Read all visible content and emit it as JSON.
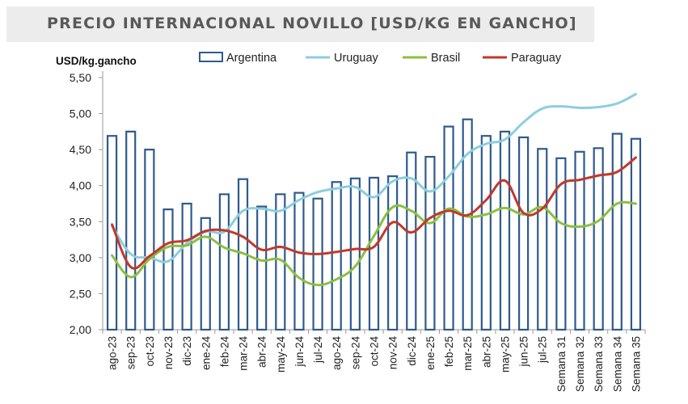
{
  "chart_data": {
    "type": "bar+line",
    "title": "PRECIO INTERNACIONAL NOVILLO [USD/KG EN GANCHO]",
    "ylabel": "USD/kg.gancho",
    "ylim": [
      2.0,
      5.5
    ],
    "yticks": [
      "2,00",
      "2,50",
      "3,00",
      "3,50",
      "4,00",
      "4,50",
      "5,00",
      "5,50"
    ],
    "legend_position": "top",
    "grid": false,
    "categories": [
      "ago-23",
      "sep-23",
      "oct-23",
      "nov-23",
      "dic-23",
      "ene-24",
      "feb-24",
      "mar-24",
      "abr-24",
      "may-24",
      "jun-24",
      "jul-24",
      "ago-24",
      "sep-24",
      "oct-24",
      "nov-24",
      "dic-24",
      "ene-25",
      "feb-25",
      "mar-25",
      "abr-25",
      "may-25",
      "jun-25",
      "jul-25",
      "Semana 31",
      "Semana 32",
      "Semana 33",
      "Semana 34",
      "Semana 35"
    ],
    "series": [
      {
        "name": "Argentina",
        "kind": "bar",
        "color": "#2e5a8c",
        "values": [
          4.69,
          4.75,
          4.5,
          3.67,
          3.75,
          3.55,
          3.88,
          4.09,
          3.71,
          3.88,
          3.9,
          3.82,
          4.05,
          4.1,
          4.11,
          4.13,
          4.46,
          4.4,
          4.82,
          4.92,
          4.69,
          4.75,
          4.67,
          4.51,
          4.38,
          4.47,
          4.52,
          4.72,
          4.65
        ]
      },
      {
        "name": "Uruguay",
        "kind": "line",
        "color": "#8ccde0",
        "values": [
          3.44,
          3.05,
          3.0,
          2.95,
          3.2,
          3.36,
          3.36,
          3.65,
          3.68,
          3.65,
          3.8,
          3.91,
          3.96,
          3.98,
          3.84,
          4.06,
          4.1,
          3.92,
          4.13,
          4.44,
          4.58,
          4.64,
          4.88,
          5.07,
          5.1,
          5.08,
          5.09,
          5.14,
          5.27
        ]
      },
      {
        "name": "Brasil",
        "kind": "line",
        "color": "#8cbf40",
        "values": [
          3.03,
          2.73,
          2.98,
          3.15,
          3.17,
          3.29,
          3.14,
          3.06,
          2.96,
          2.97,
          2.72,
          2.62,
          2.7,
          2.88,
          3.3,
          3.7,
          3.65,
          3.48,
          3.68,
          3.57,
          3.6,
          3.69,
          3.6,
          3.7,
          3.48,
          3.43,
          3.51,
          3.75,
          3.75
        ]
      },
      {
        "name": "Paraguay",
        "kind": "line",
        "color": "#c0392b",
        "values": [
          3.46,
          2.87,
          3.02,
          3.2,
          3.24,
          3.37,
          3.38,
          3.29,
          3.11,
          3.15,
          3.07,
          3.05,
          3.08,
          3.12,
          3.15,
          3.49,
          3.35,
          3.55,
          3.65,
          3.59,
          3.8,
          4.07,
          3.62,
          3.68,
          4.02,
          4.08,
          4.14,
          4.19,
          4.39
        ]
      }
    ]
  }
}
